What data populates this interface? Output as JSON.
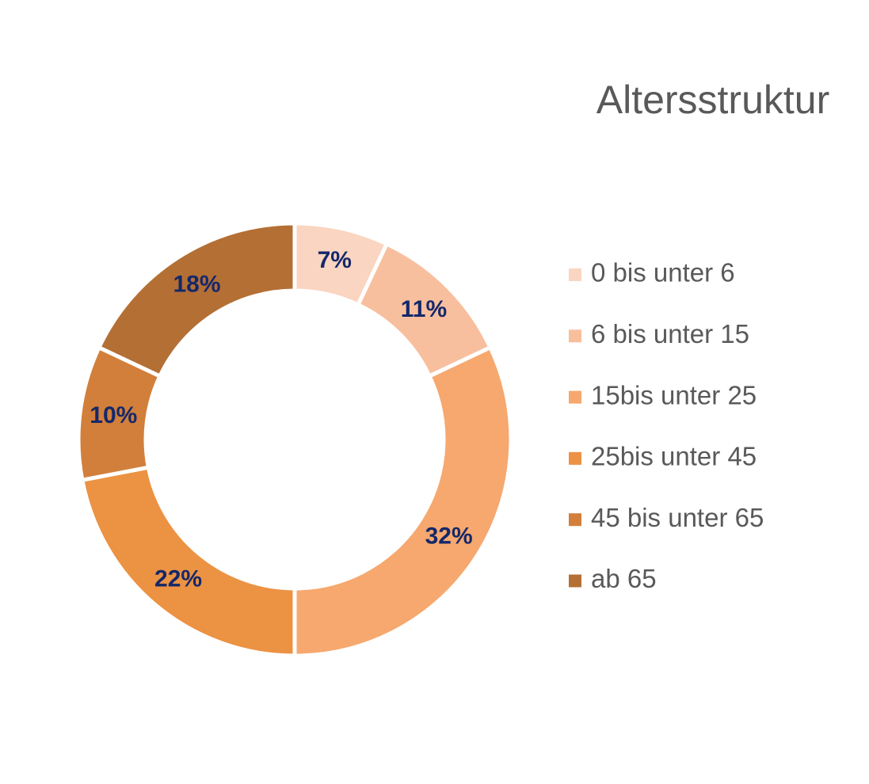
{
  "chart_data": {
    "type": "donut",
    "title": "Altersstruktur",
    "categories": [
      "0 bis unter 6",
      "6 bis unter 15",
      "15bis unter 25",
      "25bis unter 45",
      "45 bis unter 65",
      "ab 65"
    ],
    "values": [
      7,
      11,
      32,
      22,
      10,
      18
    ],
    "value_labels": [
      "7%",
      "11%",
      "32%",
      "22%",
      "10%",
      "18%"
    ],
    "colors": [
      "#FAD5C1",
      "#F8BF9E",
      "#F6A86E",
      "#EC9243",
      "#D27F3B",
      "#B46F35"
    ],
    "legend": "right"
  }
}
